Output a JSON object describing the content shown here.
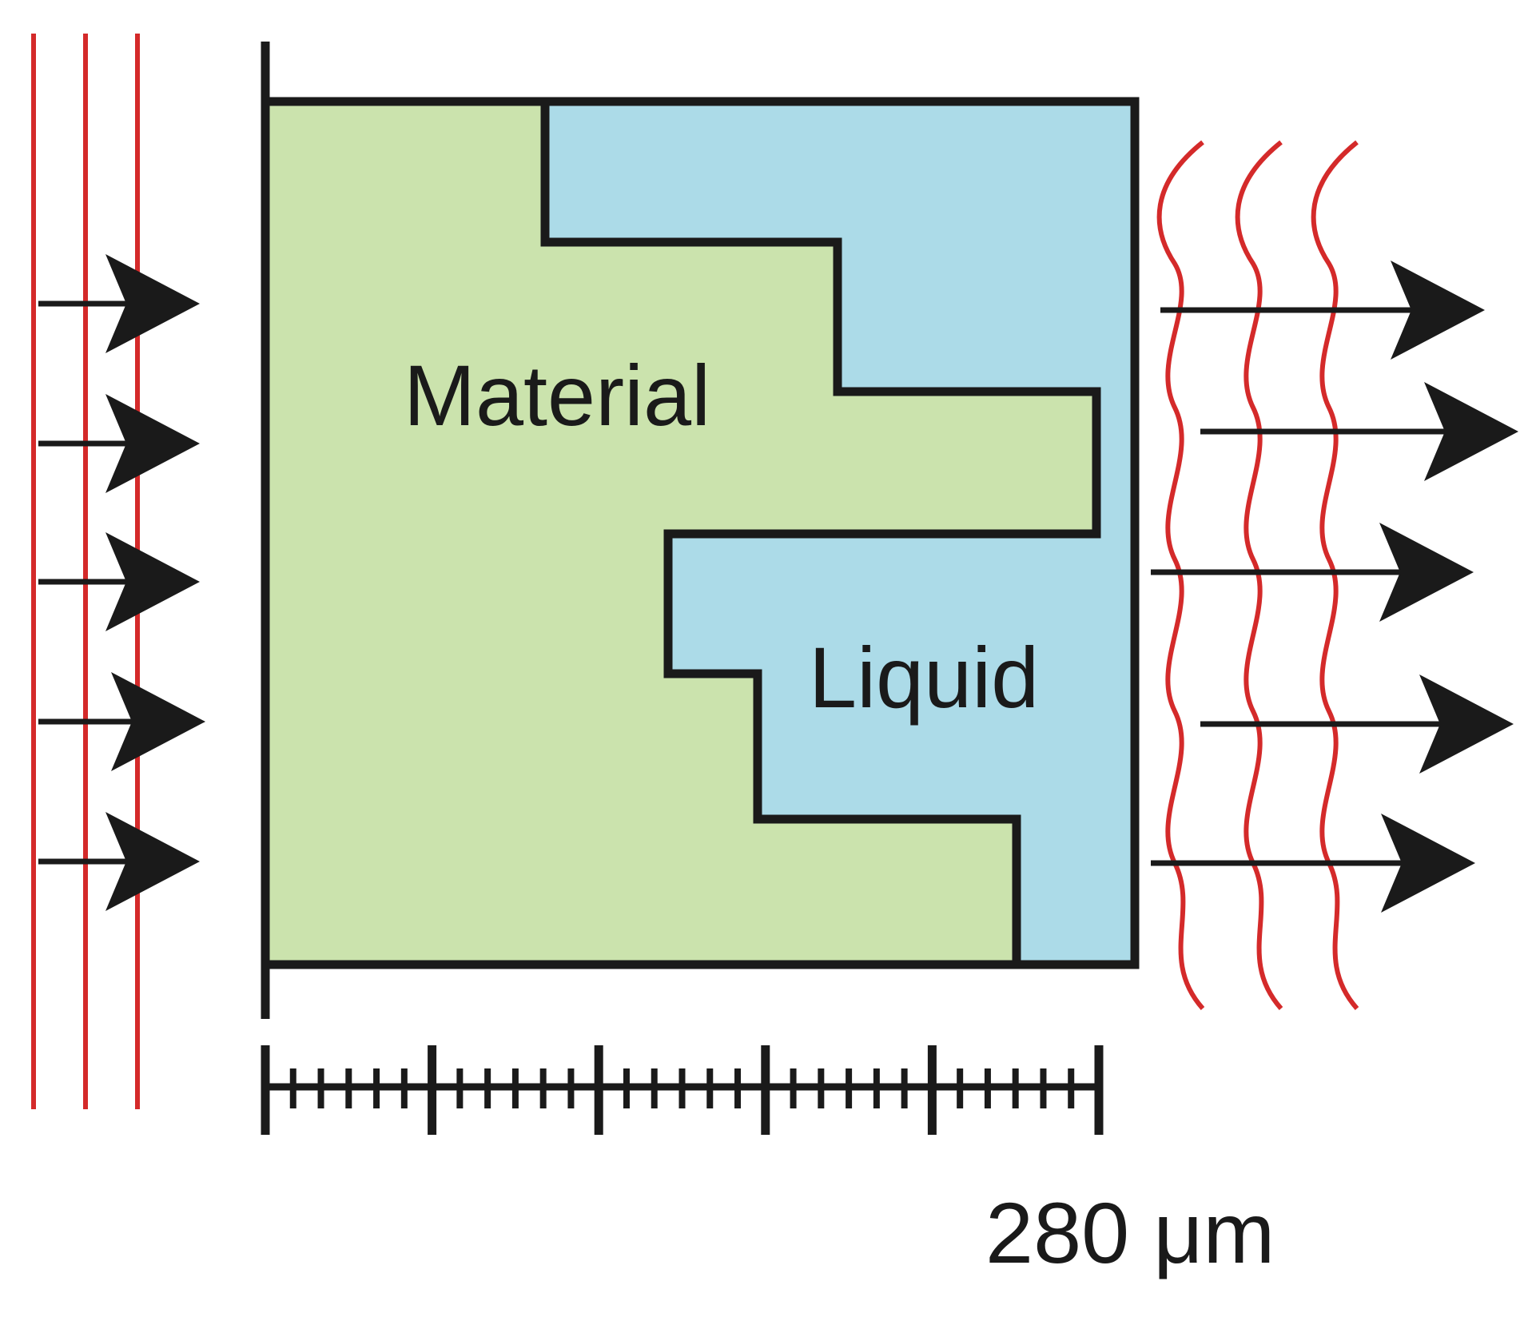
{
  "labels": {
    "material": "Material",
    "liquid": "Liquid",
    "scale": "280 μm"
  },
  "colors": {
    "material": "#cbe3ad",
    "liquid": "#acdbe8",
    "outline": "#1a1a1a",
    "wave": "#d42a2a",
    "arrow": "#1a1a1a",
    "background": "#ffffff"
  },
  "icons": {
    "incident_arrow": "arrow-right-icon",
    "transmitted_arrow": "arrow-right-icon"
  }
}
